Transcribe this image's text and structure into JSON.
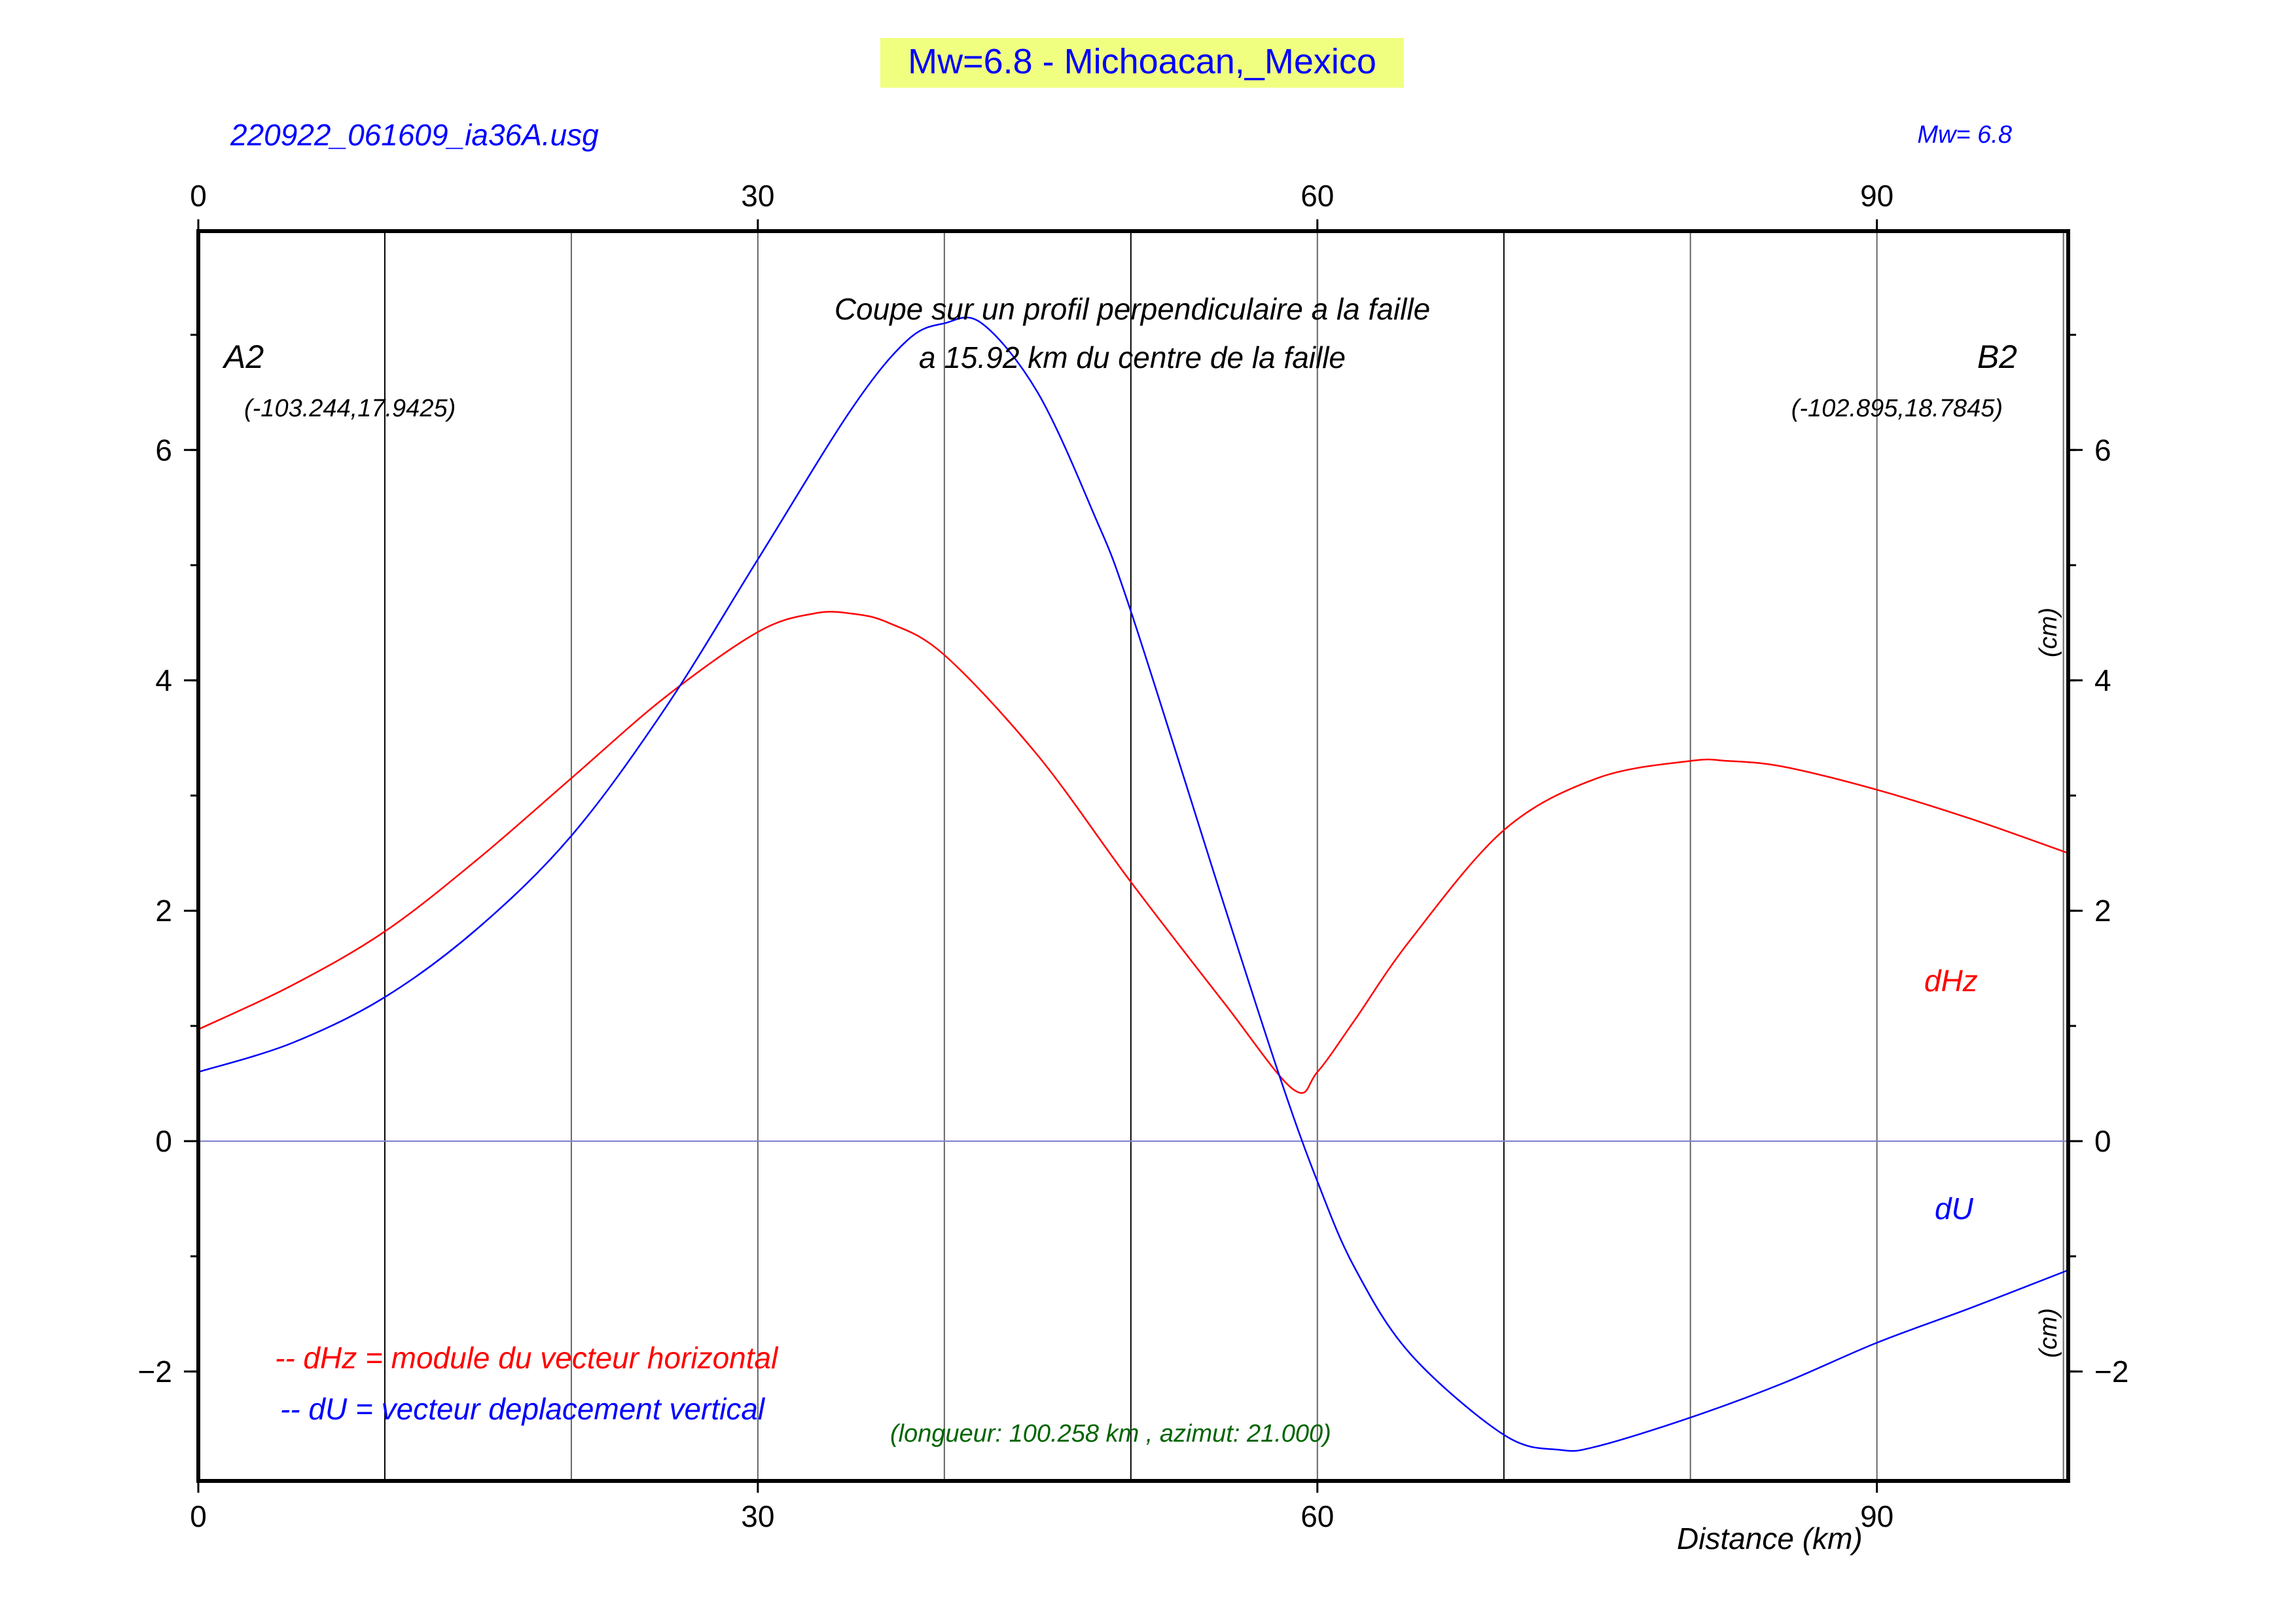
{
  "title": "Mw=6.8 - Michoacan,_Mexico",
  "filename": "220922_061609_ia36A.usg",
  "magnitude_label": "Mw= 6.8",
  "profile_title_line1": "Coupe sur un profil perpendiculaire a la faille",
  "profile_title_line2": "a 15.92 km du centre de la faille",
  "point_a_name": "A2",
  "point_a_coords": "(-103.244,17.9425)",
  "point_b_name": "B2",
  "point_b_coords": "(-102.895,18.7845)",
  "unit_label_upper": "(cm)",
  "unit_label_lower": "(cm)",
  "series_label_dhz": "dHz",
  "series_label_du": "dU",
  "legend_dhz": "-- dHz = module du vecteur horizontal",
  "legend_du": "-- dU =  vecteur deplacement vertical",
  "profile_info": "(longueur: 100.258 km , azimut: 21.000)",
  "xlabel": "Distance (km)",
  "colors": {
    "dhz": "#ff0000",
    "du": "#0000ff",
    "title_text": "#0000ff",
    "title_background": "#f0ff80",
    "info_text": "#006400",
    "zero_line": "#8080d0"
  },
  "chart_data": {
    "type": "line",
    "xlim": [
      0,
      100.258
    ],
    "ylim": [
      -2.95,
      7.9
    ],
    "x_ticks": [
      0,
      30,
      60,
      90
    ],
    "x_tick_labels": [
      "0",
      "30",
      "60",
      "90"
    ],
    "y_ticks": [
      -2,
      0,
      2,
      4,
      6
    ],
    "y_tick_labels": [
      "−2",
      "0",
      "2",
      "4",
      "6"
    ],
    "y_minor_ticks": [
      -2,
      -1,
      0,
      1,
      2,
      3,
      4,
      5,
      6,
      7
    ],
    "vertical_gridlines": [
      10,
      20,
      30,
      40,
      50,
      60,
      70,
      80,
      90,
      100
    ],
    "grid": true,
    "series": [
      {
        "name": "dHz",
        "x": [
          0,
          5,
          10,
          15,
          20,
          25,
          30,
          33,
          35,
          37,
          40,
          45,
          50,
          55,
          58.7,
          60,
          62,
          65,
          70,
          75,
          80,
          82,
          85,
          90,
          95,
          100.258
        ],
        "y": [
          0.97,
          1.35,
          1.82,
          2.45,
          3.15,
          3.85,
          4.42,
          4.58,
          4.58,
          4.5,
          4.22,
          3.35,
          2.25,
          1.2,
          0.45,
          0.6,
          1.05,
          1.75,
          2.7,
          3.15,
          3.3,
          3.3,
          3.25,
          3.05,
          2.8,
          2.5
        ]
      },
      {
        "name": "dU",
        "x": [
          0,
          5,
          10,
          15,
          20,
          25,
          30,
          35,
          38,
          40,
          42,
          45,
          48,
          50,
          55,
          58,
          60,
          62,
          65,
          70,
          73,
          75,
          80,
          85,
          90,
          95,
          100.258
        ],
        "y": [
          0.6,
          0.85,
          1.25,
          1.85,
          2.65,
          3.75,
          5.05,
          6.35,
          6.95,
          7.1,
          7.1,
          6.5,
          5.45,
          4.6,
          2.05,
          0.55,
          -0.35,
          -1.1,
          -1.85,
          -2.55,
          -2.68,
          -2.65,
          -2.4,
          -2.1,
          -1.75,
          -1.45,
          -1.12
        ]
      }
    ]
  }
}
